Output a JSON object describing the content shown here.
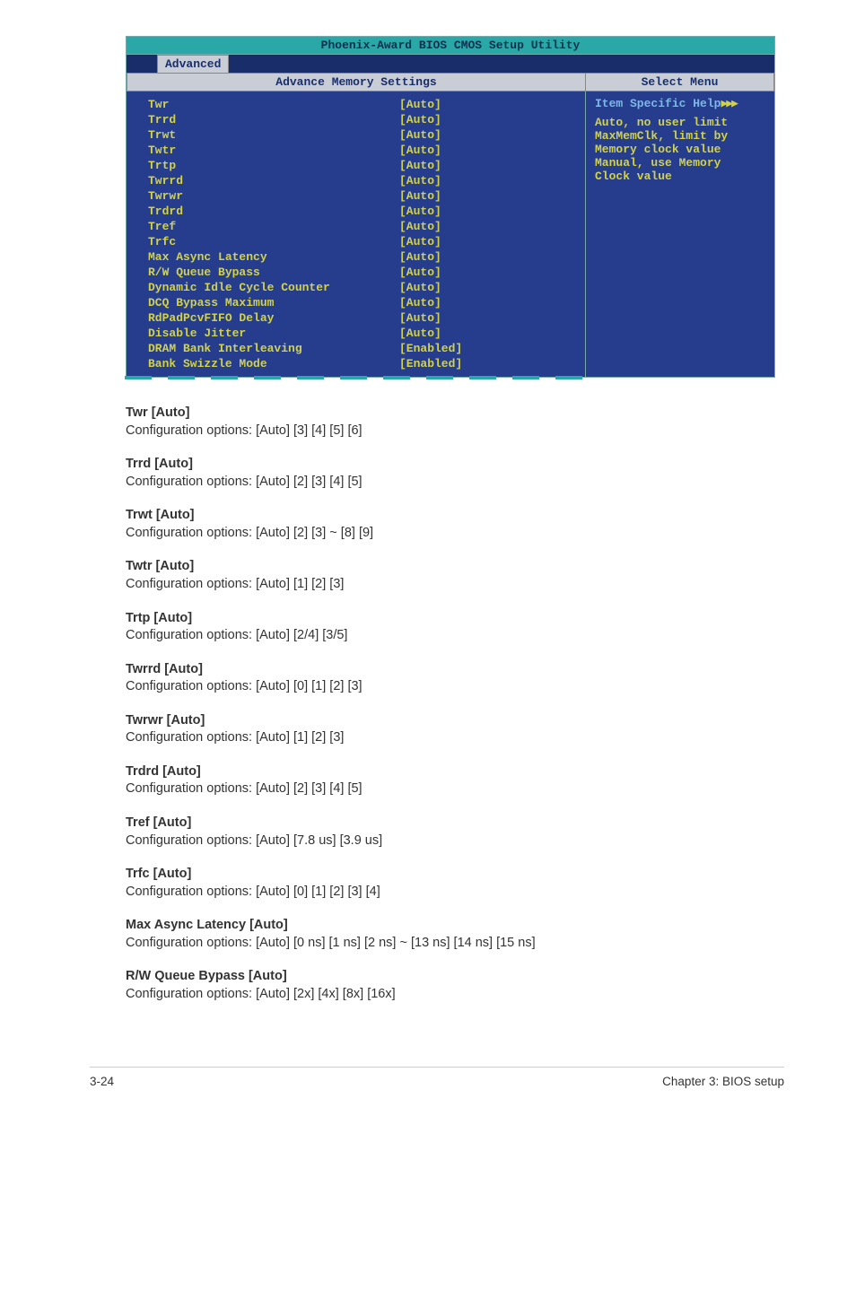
{
  "bios": {
    "title": "Phoenix-Award BIOS CMOS Setup Utility",
    "tab": "Advanced",
    "left_header": "Advance Memory Settings",
    "right_header": "Select Menu",
    "rows": [
      {
        "label": "Twr",
        "val": "[Auto]"
      },
      {
        "label": "Trrd",
        "val": "[Auto]"
      },
      {
        "label": "Trwt",
        "val": "[Auto]"
      },
      {
        "label": "Twtr",
        "val": "[Auto]"
      },
      {
        "label": "Trtp",
        "val": "[Auto]"
      },
      {
        "label": "Twrrd",
        "val": "[Auto]"
      },
      {
        "label": "Twrwr",
        "val": "[Auto]"
      },
      {
        "label": "Trdrd",
        "val": "[Auto]"
      },
      {
        "label": "Tref",
        "val": "[Auto]"
      },
      {
        "label": "Trfc",
        "val": "[Auto]"
      },
      {
        "label": "Max Async Latency",
        "val": "[Auto]"
      },
      {
        "label": "R/W Queue Bypass",
        "val": "[Auto]"
      },
      {
        "label": "Dynamic Idle Cycle Counter",
        "val": "[Auto]"
      },
      {
        "label": "DCQ Bypass Maximum",
        "val": "[Auto]"
      },
      {
        "label": "RdPadPcvFIFO Delay",
        "val": "[Auto]"
      },
      {
        "label": "Disable Jitter",
        "val": "[Auto]"
      },
      {
        "label": "DRAM Bank Interleaving",
        "val": "[Enabled]"
      },
      {
        "label": "Bank Swizzle Mode",
        "val": "[Enabled]"
      }
    ],
    "help_head": "Item Specific Help",
    "help_lines": [
      "Auto, no user limit",
      "MaxMemClk, limit by",
      "Memory clock value",
      "Manual, use Memory",
      "Clock value"
    ]
  },
  "items": [
    {
      "h": "Twr [Auto]",
      "d": "Configuration options: [Auto] [3] [4] [5] [6]"
    },
    {
      "h": "Trrd [Auto]",
      "d": "Configuration options: [Auto] [2] [3] [4] [5]"
    },
    {
      "h": "Trwt [Auto]",
      "d": "Configuration options: [Auto] [2] [3] ~ [8] [9]"
    },
    {
      "h": "Twtr [Auto]",
      "d": "Configuration options: [Auto] [1] [2] [3]"
    },
    {
      "h": "Trtp [Auto]",
      "d": "Configuration options: [Auto] [2/4] [3/5]"
    },
    {
      "h": "Twrrd [Auto]",
      "d": "Configuration options: [Auto] [0] [1] [2] [3]"
    },
    {
      "h": "Twrwr [Auto]",
      "d": "Configuration options: [Auto] [1] [2] [3]"
    },
    {
      "h": "Trdrd [Auto]",
      "d": "Configuration options: [Auto] [2] [3] [4] [5]"
    },
    {
      "h": "Tref [Auto]",
      "d": "Configuration options: [Auto] [7.8 us] [3.9 us]"
    },
    {
      "h": "Trfc [Auto]",
      "d": "Configuration options: [Auto] [0] [1] [2] [3] [4]"
    },
    {
      "h": "Max Async Latency [Auto]",
      "d": "Configuration options: [Auto] [0 ns] [1 ns] [2 ns] ~ [13 ns] [14 ns] [15 ns]"
    },
    {
      "h": "R/W Queue Bypass [Auto]",
      "d": "Configuration options: [Auto] [2x] [4x] [8x] [16x]"
    }
  ],
  "footer": {
    "left": "3-24",
    "right": "Chapter 3: BIOS setup"
  },
  "colors": {
    "teal": "#2aa7a7",
    "navy_dark": "#1a2d6b",
    "navy_body": "#253d8c",
    "grey_head": "#c9ced6",
    "yellow": "#d2d24a",
    "help_blue": "#7fb7e8"
  }
}
